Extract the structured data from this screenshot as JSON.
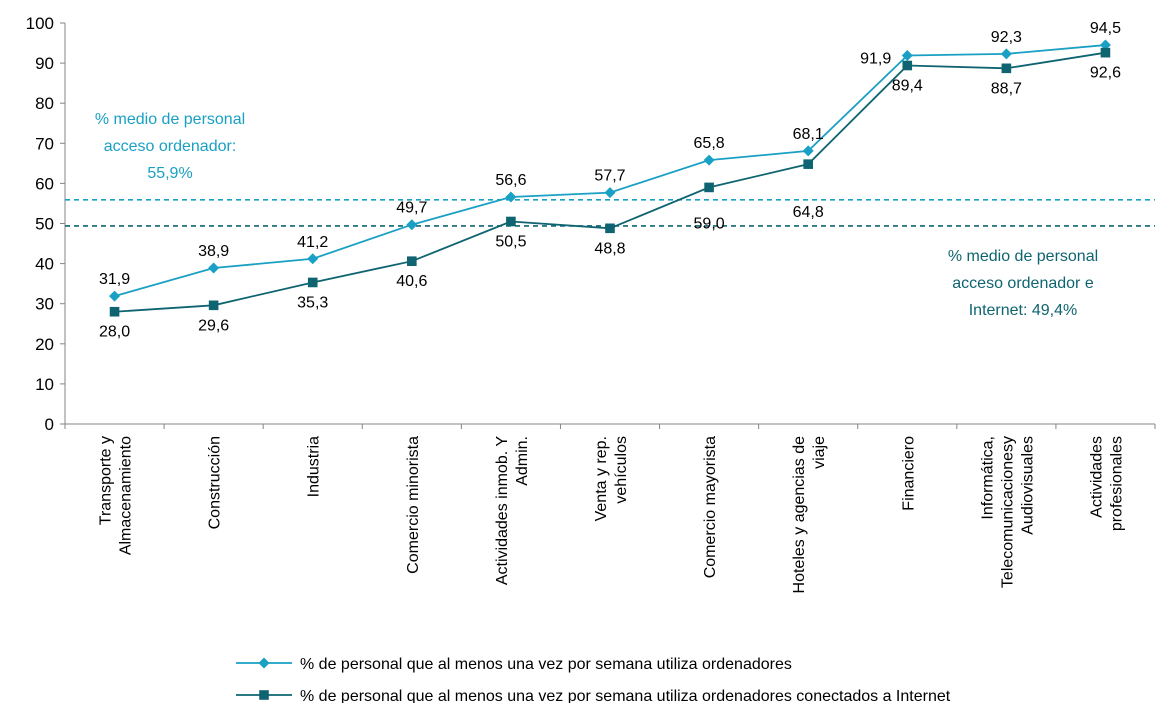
{
  "chart_data": {
    "type": "line",
    "title": "",
    "xlabel": "",
    "ylabel": "",
    "ylim": [
      0,
      100
    ],
    "yticks": [
      0,
      10,
      20,
      30,
      40,
      50,
      60,
      70,
      80,
      90,
      100
    ],
    "grid": false,
    "legend_position": "bottom",
    "categories": [
      [
        "Transporte y",
        "Almacenamiento"
      ],
      [
        "Construcción"
      ],
      [
        "Industria"
      ],
      [
        "Comercio minorista"
      ],
      [
        "Actividades inmob. Y",
        "Admin."
      ],
      [
        "Venta y rep.",
        "vehículos"
      ],
      [
        "Comercio mayorista"
      ],
      [
        "Hoteles y agencias de",
        "viaje"
      ],
      [
        "Financiero"
      ],
      [
        "Informática,",
        "Telecomunicacionesy",
        "Audiovisuales"
      ],
      [
        "Actividades",
        "profesionales"
      ]
    ],
    "series": [
      {
        "name": "% de personal que al menos una vez por semana utiliza ordenadores",
        "values": [
          31.9,
          38.9,
          41.2,
          49.7,
          56.6,
          57.7,
          65.8,
          68.1,
          91.9,
          92.3,
          94.5
        ],
        "labels": [
          "31,9",
          "38,9",
          "41,2",
          "49,7",
          "56,6",
          "57,7",
          "65,8",
          "68,1",
          "91,9",
          "92,3",
          "94,5"
        ],
        "color": "#1AA0C4",
        "marker": "diamond"
      },
      {
        "name": "% de personal que al menos una vez por semana utiliza ordenadores conectados a Internet",
        "values": [
          28.0,
          29.6,
          35.3,
          40.6,
          50.5,
          48.8,
          59.0,
          64.8,
          89.4,
          88.7,
          92.6
        ],
        "labels": [
          "28,0",
          "29,6",
          "35,3",
          "40,6",
          "50,5",
          "48,8",
          "59,0",
          "64,8",
          "89,4",
          "88,7",
          "92,6"
        ],
        "color": "#0E6470",
        "marker": "square"
      }
    ],
    "reference_lines": [
      {
        "value": 55.9,
        "color": "#1AA0C4",
        "style": "dashed",
        "annotation": [
          "% medio de personal",
          "acceso ordenador:",
          "55,9%"
        ]
      },
      {
        "value": 49.4,
        "color": "#0E6470",
        "style": "dashed",
        "annotation": [
          "% medio de personal",
          "acceso ordenador e",
          "Internet: 49,4%"
        ]
      }
    ]
  }
}
